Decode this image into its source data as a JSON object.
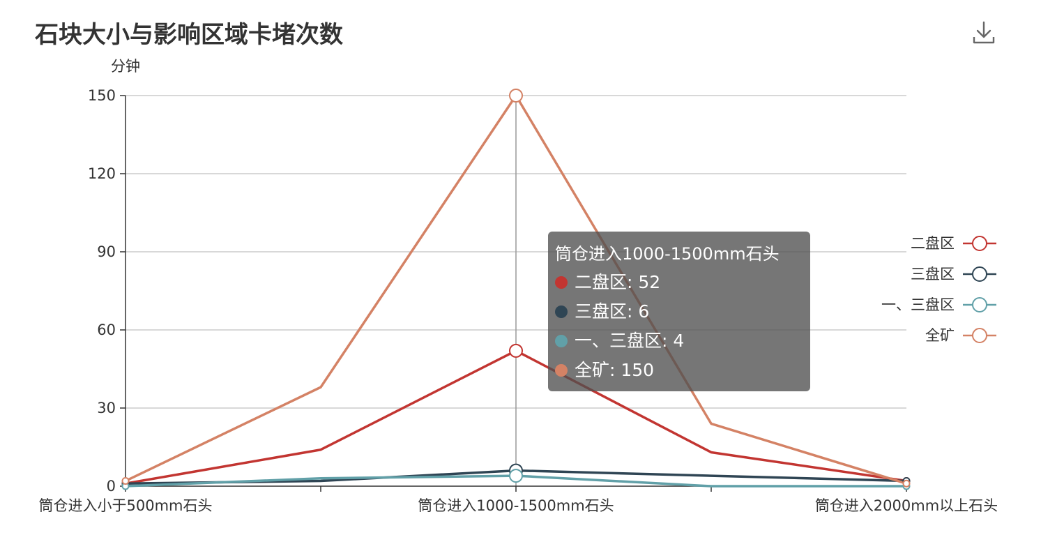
{
  "page": {
    "title": "石块大小与影响区域卡堵次数"
  },
  "toolbar": {
    "download_icon": "download-icon"
  },
  "chart_data": {
    "type": "line",
    "title": "石块大小与影响区域卡堵次数",
    "ylabel": "分钟",
    "xlabel": "",
    "ylim": [
      0,
      150
    ],
    "yticks": [
      0,
      30,
      60,
      90,
      120,
      150
    ],
    "grid": true,
    "legend_position": "right",
    "categories": [
      "筒仓进入小于500mm石头",
      "",
      "筒仓进入1000-1500mm石头",
      "",
      "筒仓进入2000mm以上石头"
    ],
    "shown_tick_labels": [
      "筒仓进入小于500mm石头",
      "筒仓进入1000-1500mm石头",
      "筒仓进入2000mm以上石头"
    ],
    "series": [
      {
        "name": "二盘区",
        "color": "#c23531",
        "values": [
          1,
          14,
          52,
          13,
          2
        ]
      },
      {
        "name": "三盘区",
        "color": "#2f4554",
        "values": [
          1,
          2,
          6,
          4,
          2
        ]
      },
      {
        "name": "一、三盘区",
        "color": "#61a0a8",
        "values": [
          0,
          3,
          4,
          0,
          0
        ]
      },
      {
        "name": "全矿",
        "color": "#d48265",
        "values": [
          2,
          38,
          150,
          24,
          1
        ]
      }
    ],
    "highlight_index": 2
  },
  "tooltip": {
    "title": "筒仓进入1000-1500mm石头",
    "rows": [
      {
        "text": "二盘区: 52",
        "color": "#c23531"
      },
      {
        "text": "三盘区: 6",
        "color": "#2f4554"
      },
      {
        "text": "一、三盘区: 4",
        "color": "#61a0a8"
      },
      {
        "text": "全矿: 150",
        "color": "#d48265"
      }
    ]
  }
}
